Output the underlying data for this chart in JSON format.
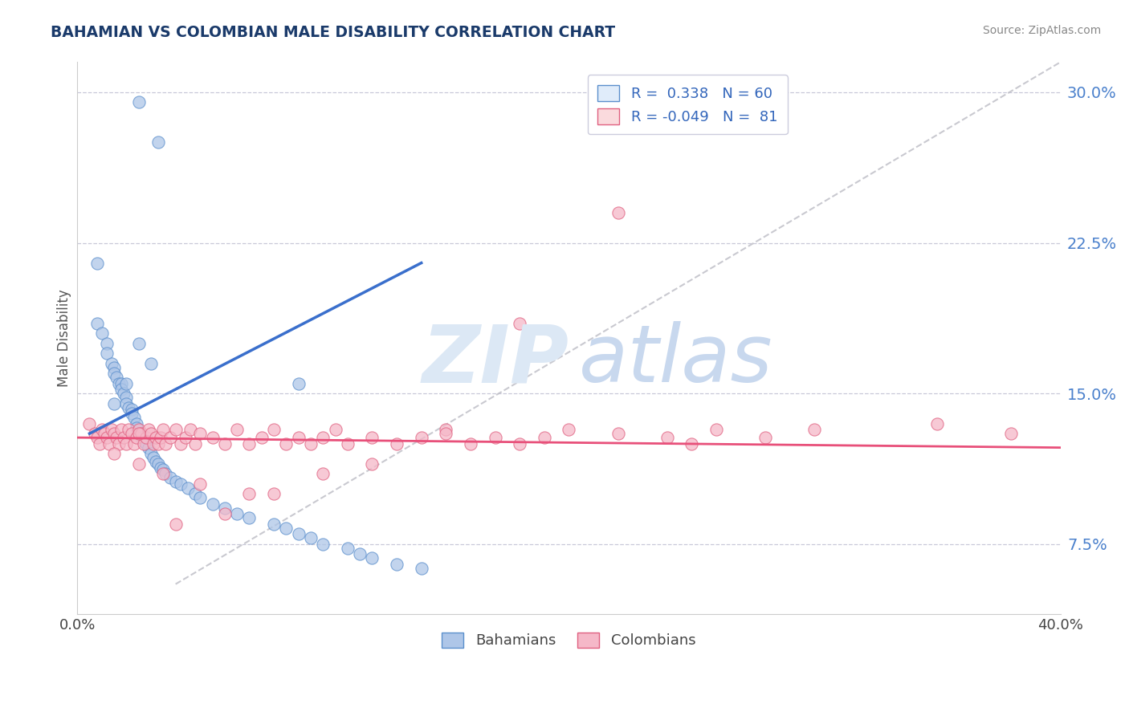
{
  "title": "BAHAMIAN VS COLOMBIAN MALE DISABILITY CORRELATION CHART",
  "source": "Source: ZipAtlas.com",
  "ylabel": "Male Disability",
  "yticks": [
    0.075,
    0.15,
    0.225,
    0.3
  ],
  "ytick_labels": [
    "7.5%",
    "15.0%",
    "22.5%",
    "30.0%"
  ],
  "x_min": 0.0,
  "x_max": 0.4,
  "y_min": 0.04,
  "y_max": 0.315,
  "bahamian_color": "#aec6e8",
  "colombian_color": "#f5b8c8",
  "bahamian_edge_color": "#5b8fcc",
  "colombian_edge_color": "#e06080",
  "bahamian_line_color": "#3a6fcc",
  "colombian_line_color": "#e8507a",
  "diag_color": "#c0c0c8",
  "R_bahamian": 0.338,
  "N_bahamian": 60,
  "R_colombian": -0.049,
  "N_colombian": 81,
  "legend_box_color": "#e0ecfa",
  "legend_box_edge": "#c0d0e8",
  "bahamian_x": [
    0.025,
    0.033,
    0.008,
    0.008,
    0.01,
    0.012,
    0.012,
    0.014,
    0.015,
    0.015,
    0.016,
    0.017,
    0.018,
    0.018,
    0.019,
    0.02,
    0.02,
    0.021,
    0.022,
    0.022,
    0.023,
    0.024,
    0.024,
    0.025,
    0.026,
    0.027,
    0.028,
    0.029,
    0.03,
    0.031,
    0.032,
    0.033,
    0.034,
    0.035,
    0.036,
    0.038,
    0.04,
    0.042,
    0.045,
    0.048,
    0.05,
    0.055,
    0.06,
    0.065,
    0.07,
    0.08,
    0.085,
    0.09,
    0.095,
    0.1,
    0.11,
    0.115,
    0.12,
    0.13,
    0.14,
    0.09,
    0.03,
    0.025,
    0.02,
    0.015
  ],
  "bahamian_y": [
    0.295,
    0.275,
    0.215,
    0.185,
    0.18,
    0.175,
    0.17,
    0.165,
    0.163,
    0.16,
    0.158,
    0.155,
    0.155,
    0.152,
    0.15,
    0.148,
    0.145,
    0.143,
    0.142,
    0.14,
    0.138,
    0.135,
    0.133,
    0.13,
    0.128,
    0.126,
    0.125,
    0.123,
    0.12,
    0.118,
    0.116,
    0.115,
    0.113,
    0.112,
    0.11,
    0.108,
    0.106,
    0.105,
    0.103,
    0.1,
    0.098,
    0.095,
    0.093,
    0.09,
    0.088,
    0.085,
    0.083,
    0.08,
    0.078,
    0.075,
    0.073,
    0.07,
    0.068,
    0.065,
    0.063,
    0.155,
    0.165,
    0.175,
    0.155,
    0.145
  ],
  "colombian_x": [
    0.005,
    0.007,
    0.008,
    0.009,
    0.01,
    0.011,
    0.012,
    0.013,
    0.014,
    0.015,
    0.016,
    0.017,
    0.018,
    0.019,
    0.02,
    0.021,
    0.022,
    0.023,
    0.024,
    0.025,
    0.026,
    0.027,
    0.028,
    0.029,
    0.03,
    0.031,
    0.032,
    0.033,
    0.034,
    0.035,
    0.036,
    0.038,
    0.04,
    0.042,
    0.044,
    0.046,
    0.048,
    0.05,
    0.055,
    0.06,
    0.065,
    0.07,
    0.075,
    0.08,
    0.085,
    0.09,
    0.095,
    0.1,
    0.105,
    0.11,
    0.12,
    0.13,
    0.14,
    0.15,
    0.16,
    0.17,
    0.18,
    0.19,
    0.2,
    0.22,
    0.24,
    0.25,
    0.26,
    0.28,
    0.3,
    0.35,
    0.38,
    0.22,
    0.18,
    0.15,
    0.12,
    0.1,
    0.08,
    0.06,
    0.04,
    0.025,
    0.015,
    0.025,
    0.035,
    0.05,
    0.07
  ],
  "colombian_y": [
    0.135,
    0.13,
    0.128,
    0.125,
    0.132,
    0.13,
    0.128,
    0.125,
    0.132,
    0.13,
    0.128,
    0.125,
    0.132,
    0.128,
    0.125,
    0.132,
    0.13,
    0.125,
    0.128,
    0.132,
    0.13,
    0.125,
    0.128,
    0.132,
    0.13,
    0.125,
    0.128,
    0.125,
    0.128,
    0.132,
    0.125,
    0.128,
    0.132,
    0.125,
    0.128,
    0.132,
    0.125,
    0.13,
    0.128,
    0.125,
    0.132,
    0.125,
    0.128,
    0.132,
    0.125,
    0.128,
    0.125,
    0.128,
    0.132,
    0.125,
    0.128,
    0.125,
    0.128,
    0.132,
    0.125,
    0.128,
    0.125,
    0.128,
    0.132,
    0.13,
    0.128,
    0.125,
    0.132,
    0.128,
    0.132,
    0.135,
    0.13,
    0.24,
    0.185,
    0.13,
    0.115,
    0.11,
    0.1,
    0.09,
    0.085,
    0.13,
    0.12,
    0.115,
    0.11,
    0.105,
    0.1
  ]
}
